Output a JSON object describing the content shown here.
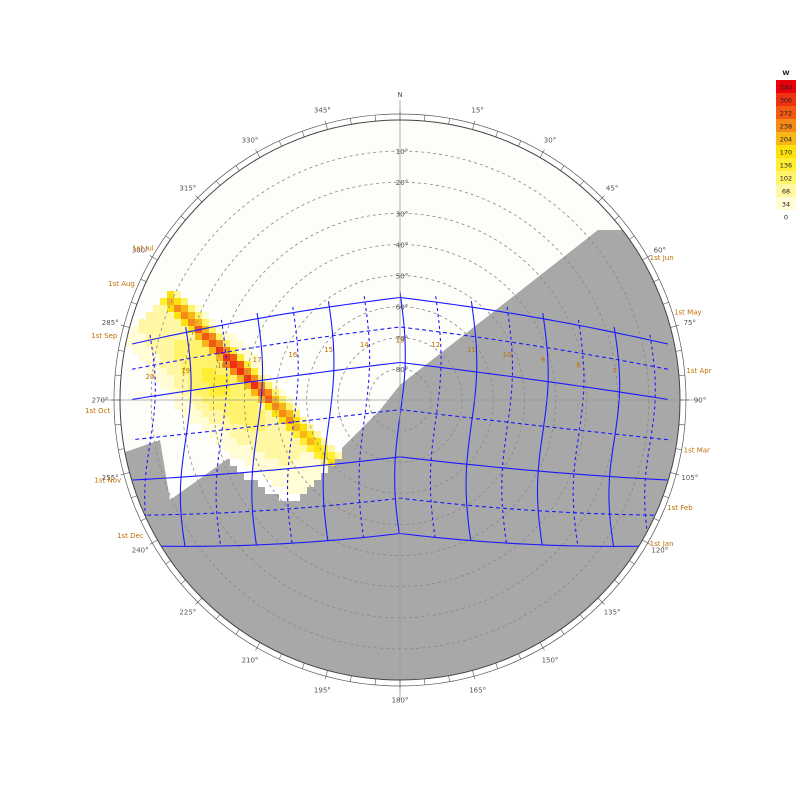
{
  "chart_data": {
    "type": "heatmap",
    "title": "",
    "north_label": "N",
    "azimuth_ticks": [
      {
        "deg": 0,
        "label": ""
      },
      {
        "deg": 15,
        "label": "15°"
      },
      {
        "deg": 30,
        "label": "30°"
      },
      {
        "deg": 45,
        "label": "45°"
      },
      {
        "deg": 60,
        "label": "60°"
      },
      {
        "deg": 75,
        "label": "75°"
      },
      {
        "deg": 90,
        "label": "90°"
      },
      {
        "deg": 105,
        "label": "105°"
      },
      {
        "deg": 120,
        "label": "120°"
      },
      {
        "deg": 135,
        "label": "135°"
      },
      {
        "deg": 150,
        "label": "150°"
      },
      {
        "deg": 165,
        "label": "165°"
      },
      {
        "deg": 180,
        "label": "180°"
      },
      {
        "deg": 195,
        "label": "195°"
      },
      {
        "deg": 210,
        "label": "210°"
      },
      {
        "deg": 225,
        "label": "225°"
      },
      {
        "deg": 240,
        "label": "240°"
      },
      {
        "deg": 255,
        "label": "255°"
      },
      {
        "deg": 270,
        "label": "270°"
      },
      {
        "deg": 285,
        "label": "285°"
      },
      {
        "deg": 300,
        "label": "300°"
      },
      {
        "deg": 315,
        "label": "315°"
      },
      {
        "deg": 330,
        "label": "330°"
      },
      {
        "deg": 345,
        "label": "345°"
      }
    ],
    "altitude_rings": [
      {
        "alt": 10,
        "label": "10°"
      },
      {
        "alt": 20,
        "label": "20°"
      },
      {
        "alt": 30,
        "label": "30°"
      },
      {
        "alt": 40,
        "label": "40°"
      },
      {
        "alt": 50,
        "label": "50°"
      },
      {
        "alt": 60,
        "label": "60°"
      },
      {
        "alt": 70,
        "label": "70°"
      },
      {
        "alt": 80,
        "label": "80°"
      }
    ],
    "month_labels_left": [
      {
        "label": "1st Jul",
        "az": 302
      },
      {
        "label": "1st Aug",
        "az": 294
      },
      {
        "label": "1st Sep",
        "az": 283
      },
      {
        "label": "1st Oct",
        "az": 268
      },
      {
        "label": "1st Nov",
        "az": 254
      },
      {
        "label": "1st Dec",
        "az": 242
      }
    ],
    "month_labels_right": [
      {
        "label": "1st Jun",
        "az": 60
      },
      {
        "label": "1st May",
        "az": 72
      },
      {
        "label": "1st Apr",
        "az": 84
      },
      {
        "label": "1st Mar",
        "az": 100
      },
      {
        "label": "1st Feb",
        "az": 112
      },
      {
        "label": "1st Jan",
        "az": 120
      }
    ],
    "hour_labels": [
      "7",
      "8",
      "9",
      "10",
      "11",
      "12",
      "13",
      "14",
      "15",
      "16",
      "17",
      "18",
      "19",
      "20"
    ],
    "legend": {
      "unit": "W",
      "entries": [
        {
          "value": "340",
          "color": "#e8000b"
        },
        {
          "value": "306",
          "color": "#ee3212"
        },
        {
          "value": "272",
          "color": "#f25a14"
        },
        {
          "value": "238",
          "color": "#f58a18"
        },
        {
          "value": "204",
          "color": "#f8b617"
        },
        {
          "value": "170",
          "color": "#fde10e"
        },
        {
          "value": "136",
          "color": "#ffee33"
        },
        {
          "value": "102",
          "color": "#fff36c"
        },
        {
          "value": "68",
          "color": "#fff7a4"
        },
        {
          "value": "34",
          "color": "#fffcd6"
        },
        {
          "value": "0",
          "color": "#ffffff"
        }
      ]
    },
    "colors": {
      "sun_path": "#1a1aff",
      "obstruction": "#a8a8a8",
      "grid": "#888888",
      "label": "#c07000"
    }
  }
}
